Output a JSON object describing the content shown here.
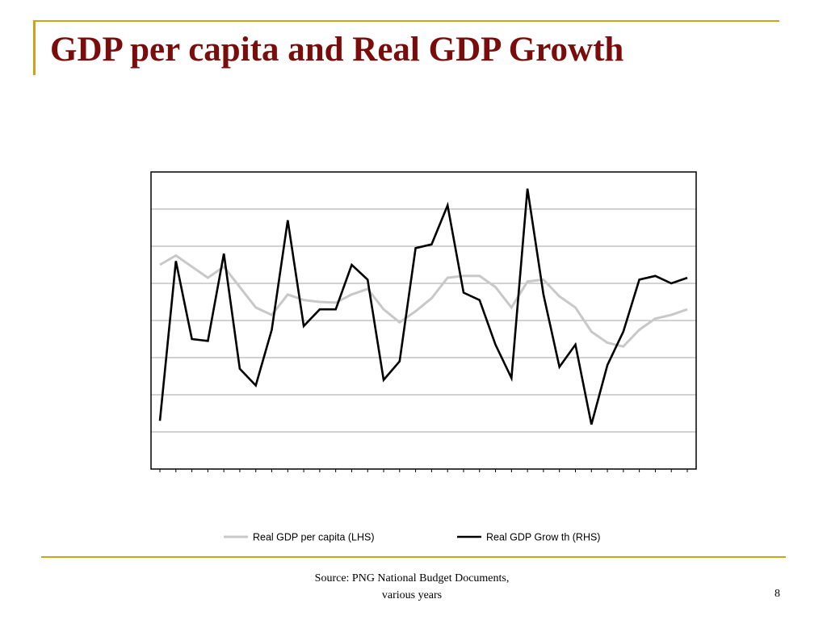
{
  "slide": {
    "title": "GDP per capita and Real GDP Growth",
    "source_line1": "Source: PNG National Budget Documents,",
    "source_line2": "various years",
    "page_number": "8"
  },
  "colors": {
    "title": "#7b0c0c",
    "accent": "#d4a017",
    "gdp_per_capita_series": "#c8c8c8",
    "gdp_growth_series": "#000000",
    "gridline": "#a6a6a6"
  },
  "chart_data": {
    "type": "line",
    "title": "",
    "xlabel": "",
    "ylabel": "",
    "x_tick_count": 34,
    "ylim": [
      0,
      8
    ],
    "y_gridlines": [
      1,
      2,
      3,
      4,
      5,
      6,
      7
    ],
    "grid": true,
    "legend_position": "bottom",
    "series": [
      {
        "name": "Real GDP per capita (LHS)",
        "axis": "left",
        "color": "#c8c8c8",
        "values": [
          5.5,
          5.75,
          5.45,
          5.15,
          5.45,
          4.9,
          4.35,
          4.15,
          4.7,
          4.55,
          4.5,
          4.48,
          4.7,
          4.85,
          4.3,
          3.95,
          4.25,
          4.6,
          5.15,
          5.2,
          5.2,
          4.9,
          4.35,
          5.05,
          5.1,
          4.65,
          4.35,
          3.7,
          3.4,
          3.3,
          3.75,
          4.05,
          4.15,
          4.3
        ]
      },
      {
        "name": "Real GDP Grow th (RHS)",
        "axis": "right",
        "color": "#000000",
        "values": [
          1.3,
          5.6,
          3.5,
          3.45,
          5.8,
          2.7,
          2.25,
          3.75,
          6.7,
          3.85,
          4.3,
          4.3,
          5.5,
          5.1,
          2.4,
          2.9,
          5.95,
          6.05,
          7.1,
          4.75,
          4.55,
          3.35,
          2.45,
          7.55,
          4.7,
          2.75,
          3.35,
          1.2,
          2.8,
          3.7,
          5.1,
          5.2,
          5.0,
          5.15
        ]
      }
    ]
  }
}
